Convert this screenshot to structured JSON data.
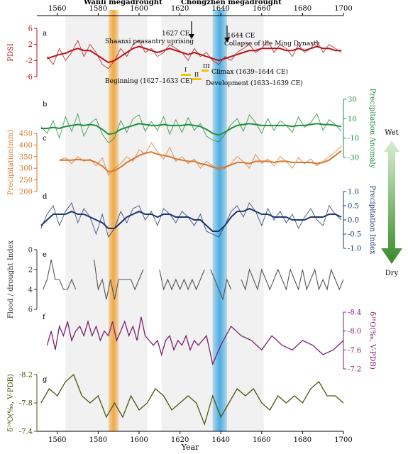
{
  "header": {
    "wanli_label": "Wanli  megadrought",
    "chongzhen_label": "Chongzhen  megadrought",
    "wet_label": "Wet",
    "dry_label": "Dry",
    "year_label": "Year"
  },
  "colors": {
    "pdsi": "#b5121b",
    "precip_anomaly": "#1f8f3a",
    "precipitation": "#d9772b",
    "precip_index": "#1d3570",
    "flood": "#555555",
    "d18o_f": "#7b1f6e",
    "d18o_g": "#4d5410",
    "wanli_band": "#f0a030",
    "chongzhen_band": "#3aa6e0",
    "arrow_top": "#d8efd0",
    "arrow_bottom": "#3a8a2a"
  },
  "annotations": {
    "event_1627_year": "1627 CE",
    "event_1627_text": "Shaanxi peasantry uprising",
    "event_1644_year": "1644 CE",
    "event_1644_text": "Collapse of the Ming Dynasty",
    "phase_I": "I",
    "phase_II": "II",
    "phase_III": "III",
    "climax": "Climax (1639–1644 CE)",
    "beginning": "Beginning (1627–1633 CE)",
    "development": "Development (1633–1639 CE)"
  },
  "chart_data": {
    "type": "line",
    "x_axis": {
      "label": "Year",
      "range": [
        1550,
        1700
      ],
      "ticks": [
        "1560",
        "1580",
        "1600",
        "1620",
        "1640",
        "1660",
        "1680",
        "1700"
      ]
    },
    "shaded_periods": [
      {
        "start": 1564,
        "end": 1604,
        "color": "#ececec"
      },
      {
        "start": 1611,
        "end": 1661,
        "color": "#ececec"
      }
    ],
    "drought_bands": [
      {
        "name": "Wanli megadrought",
        "start": 1585,
        "end": 1590
      },
      {
        "name": "Chongzhen megadrought",
        "start": 1636,
        "end": 1643
      }
    ],
    "panels": [
      {
        "letter": "a",
        "ylabel": "PDSI",
        "ylim": [
          -6,
          6
        ],
        "ticks": [
          "-6",
          "-2",
          "2",
          "6"
        ],
        "axis_side": "left",
        "inverted": false,
        "x": [
          1555,
          1558,
          1561,
          1564,
          1567,
          1570,
          1573,
          1576,
          1579,
          1582,
          1585,
          1588,
          1591,
          1594,
          1597,
          1600,
          1603,
          1606,
          1609,
          1612,
          1615,
          1618,
          1621,
          1624,
          1627,
          1630,
          1633,
          1636,
          1639,
          1642,
          1645,
          1648,
          1651,
          1654,
          1657,
          1660,
          1663,
          1666,
          1669,
          1672,
          1675,
          1678,
          1681,
          1684,
          1687,
          1690,
          1693,
          1696,
          1699
        ],
        "raw": [
          -1,
          -3,
          1,
          -2,
          0,
          3,
          -1,
          2,
          0,
          -3,
          -4,
          -2,
          1,
          -1,
          2,
          3,
          0,
          1,
          -1,
          0,
          2,
          1,
          0,
          -2,
          1,
          -1,
          0,
          -2,
          -3,
          -1,
          -2,
          0,
          1,
          2,
          0,
          1,
          3,
          0,
          2,
          1,
          -1,
          2,
          0,
          1,
          3,
          0,
          2,
          1,
          0
        ],
        "smooth": [
          -1.5,
          -1,
          -0.5,
          -0.2,
          0.5,
          1,
          0.5,
          0.5,
          -0.5,
          -1.5,
          -2.5,
          -2,
          -1,
          0,
          1,
          1.5,
          1,
          0.5,
          0,
          0.5,
          1,
          0.5,
          0,
          -0.5,
          0,
          -0.5,
          -1,
          -1.5,
          -2,
          -1.5,
          -1,
          -0.5,
          0,
          0.5,
          0.5,
          1,
          1,
          1,
          1,
          0.5,
          0.5,
          1,
          0.5,
          1,
          1.5,
          1,
          1,
          0.5,
          0.5
        ]
      },
      {
        "letter": "b",
        "ylabel": "Precipitation Anomaly",
        "ylim": [
          -30,
          30
        ],
        "ticks": [
          "-30",
          "-10",
          "10",
          "30"
        ],
        "axis_side": "right",
        "inverted": false,
        "x": [
          1552,
          1555,
          1558,
          1561,
          1564,
          1567,
          1570,
          1573,
          1576,
          1579,
          1582,
          1585,
          1588,
          1591,
          1594,
          1597,
          1600,
          1603,
          1606,
          1609,
          1612,
          1615,
          1618,
          1621,
          1624,
          1627,
          1630,
          1633,
          1636,
          1639,
          1642,
          1645,
          1648,
          1651,
          1654,
          1657,
          1660,
          1663,
          1666,
          1669,
          1672,
          1675,
          1678,
          1681,
          1684,
          1687,
          1690,
          1693,
          1696,
          1699
        ],
        "raw": [
          2,
          -5,
          8,
          -10,
          12,
          -3,
          15,
          -8,
          5,
          10,
          -6,
          -15,
          -10,
          8,
          -4,
          10,
          14,
          -3,
          7,
          -2,
          12,
          -6,
          9,
          -4,
          11,
          -2,
          5,
          -8,
          -12,
          -14,
          -6,
          4,
          10,
          -3,
          14,
          6,
          -5,
          10,
          -2,
          8,
          3,
          -4,
          12,
          1,
          6,
          15,
          -2,
          9,
          4,
          -3
        ],
        "smooth": [
          0,
          0,
          1,
          0,
          2,
          3,
          4,
          3,
          4,
          3,
          -1,
          -6,
          -5,
          -1,
          1,
          3,
          5,
          4,
          3,
          3,
          4,
          3,
          3,
          3,
          4,
          3,
          2,
          -1,
          -5,
          -7,
          -4,
          0,
          3,
          4,
          5,
          4,
          3,
          3,
          3,
          3,
          3,
          2,
          3,
          3,
          4,
          5,
          4,
          4,
          3,
          2
        ]
      },
      {
        "letter": "c",
        "ylabel": "Precipitation(mm)",
        "ylim": [
          200,
          450
        ],
        "ticks": [
          "200",
          "250",
          "300",
          "350",
          "400",
          "450"
        ],
        "axis_side": "left",
        "inverted": false,
        "x": [
          1561,
          1564,
          1567,
          1570,
          1573,
          1576,
          1579,
          1582,
          1585,
          1588,
          1591,
          1594,
          1597,
          1600,
          1603,
          1606,
          1609,
          1612,
          1615,
          1618,
          1621,
          1624,
          1627,
          1630,
          1633,
          1636,
          1639,
          1642,
          1645,
          1648,
          1651,
          1654,
          1657,
          1660,
          1663,
          1666,
          1669,
          1672,
          1675,
          1678,
          1681,
          1684,
          1687,
          1690,
          1693,
          1696,
          1699
        ],
        "raw": [
          335,
          345,
          320,
          350,
          330,
          340,
          310,
          345,
          270,
          300,
          320,
          350,
          330,
          380,
          360,
          410,
          370,
          340,
          390,
          330,
          350,
          320,
          340,
          300,
          330,
          310,
          290,
          300,
          320,
          350,
          330,
          300,
          360,
          320,
          340,
          310,
          350,
          330,
          300,
          345,
          320,
          340,
          310,
          330,
          350,
          370,
          395
        ],
        "smooth": [
          335,
          335,
          335,
          338,
          335,
          335,
          325,
          310,
          285,
          290,
          305,
          325,
          340,
          355,
          365,
          370,
          360,
          355,
          350,
          340,
          335,
          330,
          330,
          320,
          315,
          305,
          300,
          305,
          315,
          325,
          325,
          320,
          330,
          330,
          330,
          325,
          330,
          330,
          325,
          325,
          325,
          325,
          320,
          325,
          335,
          355,
          375
        ]
      },
      {
        "letter": "d",
        "ylabel": "Precipitation Index",
        "ylim": [
          -1,
          1
        ],
        "ticks": [
          "-1.0",
          "-0.5",
          "0.0",
          "0.5",
          "1.0"
        ],
        "axis_side": "right",
        "inverted": false,
        "x": [
          1552,
          1555,
          1558,
          1561,
          1564,
          1567,
          1570,
          1573,
          1576,
          1579,
          1582,
          1585,
          1588,
          1591,
          1594,
          1597,
          1600,
          1603,
          1606,
          1609,
          1612,
          1615,
          1618,
          1621,
          1624,
          1627,
          1630,
          1633,
          1636,
          1639,
          1642,
          1645,
          1648,
          1651,
          1654,
          1657,
          1660,
          1663,
          1666,
          1669,
          1672,
          1675,
          1678,
          1681,
          1684,
          1687,
          1690,
          1693,
          1696,
          1699
        ],
        "raw": [
          -0.3,
          0.2,
          0.5,
          -0.2,
          0.3,
          0.6,
          -0.1,
          0.4,
          0.1,
          -0.5,
          0.2,
          -0.6,
          -0.3,
          0.3,
          -0.1,
          0.4,
          0.5,
          0,
          0.3,
          -0.2,
          0.4,
          0.2,
          -0.1,
          0.3,
          0.1,
          -0.2,
          0.2,
          -0.4,
          -0.5,
          -0.6,
          -0.2,
          0.3,
          0.5,
          0.1,
          0.6,
          0.3,
          -0.2,
          0.4,
          0,
          0.3,
          -0.1,
          0.2,
          -0.3,
          0.1,
          0.4,
          0,
          -0.2,
          0.5,
          0.2,
          0
        ],
        "smooth": [
          -0.2,
          0,
          0.2,
          0.2,
          0.2,
          0.3,
          0.2,
          0.2,
          0.1,
          0,
          -0.1,
          -0.3,
          -0.3,
          -0.1,
          0.1,
          0.2,
          0.3,
          0.2,
          0.2,
          0.1,
          0.2,
          0.2,
          0.1,
          0.1,
          0.1,
          0,
          0,
          -0.2,
          -0.4,
          -0.4,
          -0.2,
          0.1,
          0.3,
          0.3,
          0.4,
          0.3,
          0.2,
          0.2,
          0.1,
          0.1,
          0.1,
          0,
          0,
          0,
          0.1,
          0.1,
          0.1,
          0.2,
          0.2,
          0.1
        ]
      },
      {
        "letter": "e",
        "ylabel": "Flood / drought Index",
        "ylim": [
          0,
          6
        ],
        "ticks": [
          "0",
          "2",
          "4",
          "6"
        ],
        "axis_side": "left",
        "inverted": true,
        "segments": [
          {
            "x": [
              1553,
              1555,
              1557,
              1559,
              1561,
              1563,
              1565,
              1567,
              1569
            ],
            "y": [
              4,
              3,
              1,
              3,
              3,
              4,
              4,
              3,
              4
            ]
          },
          {
            "x": [
              1578,
              1580,
              1582,
              1584,
              1586,
              1588,
              1590,
              1592,
              1594,
              1596,
              1598,
              1600,
              1602
            ],
            "y": [
              1,
              4,
              3,
              5,
              3,
              5,
              3,
              3,
              3,
              3,
              4,
              3,
              2
            ]
          },
          {
            "x": [
              1610,
              1612,
              1614,
              1616,
              1618,
              1620,
              1622,
              1624,
              1626,
              1628,
              1630,
              1632
            ],
            "y": [
              2,
              4,
              3,
              4,
              3,
              4,
              3,
              4,
              3,
              4,
              3,
              2
            ]
          },
          {
            "x": [
              1635,
              1637,
              1639,
              1641,
              1643,
              1645
            ],
            "y": [
              2,
              3,
              4,
              5,
              3,
              4
            ]
          },
          {
            "x": [
              1650,
              1652,
              1654,
              1656,
              1658,
              1660,
              1662,
              1664,
              1666,
              1668,
              1670,
              1672,
              1674,
              1676,
              1678,
              1680,
              1682,
              1684,
              1686,
              1688,
              1690,
              1692,
              1694,
              1696,
              1698,
              1700
            ],
            "y": [
              3,
              4,
              2,
              3,
              4,
              2,
              3,
              4,
              3,
              2,
              3,
              4,
              2,
              3,
              4,
              2,
              4,
              3,
              2,
              4,
              3,
              4,
              2,
              3,
              4,
              3
            ]
          }
        ]
      },
      {
        "letter": "f",
        "ylabel": "δ¹⁸O(‰, V-PDB)",
        "ylim": [
          -8.4,
          -7.2
        ],
        "ticks": [
          "-8.4",
          "-8.0",
          "-7.6",
          "-7.2"
        ],
        "axis_side": "right",
        "inverted": true,
        "x": [
          1555,
          1557,
          1559,
          1561,
          1563,
          1565,
          1567,
          1569,
          1571,
          1573,
          1575,
          1577,
          1579,
          1581,
          1583,
          1585,
          1587,
          1589,
          1591,
          1593,
          1595,
          1597,
          1599,
          1601,
          1603,
          1605,
          1607,
          1609,
          1611,
          1613,
          1615,
          1617,
          1619,
          1621,
          1623,
          1625,
          1627,
          1629,
          1631,
          1633,
          1636,
          1640,
          1645,
          1650,
          1655,
          1660,
          1665,
          1670,
          1675,
          1680,
          1685,
          1690,
          1695,
          1700
        ],
        "y": [
          -7.7,
          -8.0,
          -7.6,
          -8.1,
          -7.9,
          -8.2,
          -7.8,
          -8.0,
          -8.1,
          -7.9,
          -8.2,
          -7.9,
          -8.1,
          -7.8,
          -8.0,
          -7.9,
          -8.2,
          -7.8,
          -8.0,
          -8.2,
          -7.9,
          -8.1,
          -7.8,
          -8.3,
          -7.9,
          -7.8,
          -7.7,
          -7.8,
          -7.5,
          -7.8,
          -7.9,
          -7.6,
          -7.8,
          -7.7,
          -7.9,
          -7.6,
          -7.8,
          -7.7,
          -7.8,
          -7.9,
          -7.3,
          -7.7,
          -8.1,
          -7.9,
          -7.8,
          -7.6,
          -7.9,
          -7.7,
          -7.6,
          -7.8,
          -7.7,
          -7.5,
          -7.6,
          -7.8
        ]
      },
      {
        "letter": "g",
        "ylabel": "δ¹⁸O(‰, V-PDB)",
        "ylim": [
          -8.2,
          -7.4
        ],
        "ticks": [
          "-8.2",
          "-7.8",
          "-7.4"
        ],
        "axis_side": "left",
        "inverted": true,
        "x": [
          1552,
          1556,
          1560,
          1564,
          1568,
          1572,
          1576,
          1580,
          1584,
          1588,
          1592,
          1596,
          1600,
          1604,
          1608,
          1612,
          1616,
          1620,
          1624,
          1628,
          1632,
          1636,
          1640,
          1644,
          1648,
          1652,
          1656,
          1660,
          1664,
          1668,
          1672,
          1676,
          1680,
          1684,
          1688,
          1692,
          1696,
          1700
        ],
        "y": [
          -7.8,
          -8.0,
          -7.9,
          -8.1,
          -8.2,
          -7.9,
          -7.8,
          -7.9,
          -7.6,
          -7.8,
          -7.6,
          -7.9,
          -7.7,
          -7.8,
          -8.0,
          -7.9,
          -7.7,
          -7.8,
          -7.9,
          -7.8,
          -7.5,
          -7.9,
          -7.6,
          -7.8,
          -8.0,
          -7.9,
          -8.0,
          -7.8,
          -7.7,
          -7.9,
          -7.8,
          -7.9,
          -7.8,
          -8.0,
          -8.1,
          -7.9,
          -7.9,
          -7.8
        ]
      }
    ]
  }
}
